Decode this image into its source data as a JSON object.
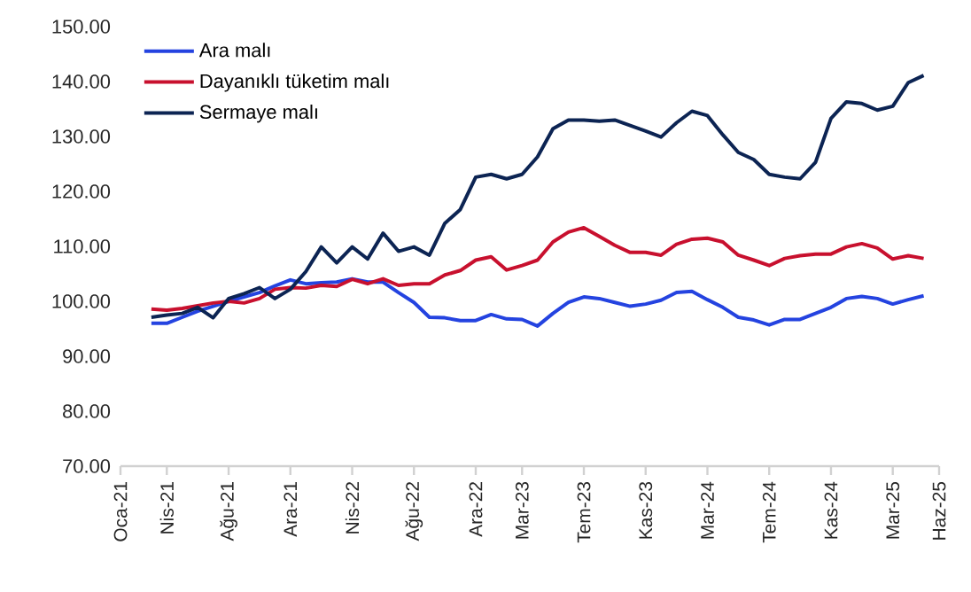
{
  "chart_data": {
    "type": "line",
    "legend": "top left",
    "grid": false,
    "marker": "none",
    "line_style": "solid",
    "x": [
      "2021-03",
      "2021-04",
      "2021-05",
      "2021-06",
      "2021-07",
      "2021-08",
      "2021-09",
      "2021-10",
      "2021-11",
      "2021-12",
      "2022-01",
      "2022-02",
      "2022-03",
      "2022-04",
      "2022-05",
      "2022-06",
      "2022-07",
      "2022-08",
      "2022-09",
      "2022-10",
      "2022-11",
      "2022-12",
      "2023-01",
      "2023-02",
      "2023-03",
      "2023-04",
      "2023-05",
      "2023-06",
      "2023-07",
      "2023-08",
      "2023-09",
      "2023-10",
      "2023-11",
      "2023-12",
      "2024-01",
      "2024-02",
      "2024-03",
      "2024-04",
      "2024-05",
      "2024-06",
      "2024-07",
      "2024-08",
      "2024-09",
      "2024-10",
      "2024-11",
      "2024-12",
      "2025-01",
      "2025-02",
      "2025-03",
      "2025-04",
      "2025-05"
    ],
    "xlim": [
      "2021-01",
      "2025-06"
    ],
    "xticks": [
      {
        "value": "2021-01",
        "label": "Oca-21"
      },
      {
        "value": "2021-04",
        "label": "Nis-21"
      },
      {
        "value": "2021-08",
        "label": "Ağu-21"
      },
      {
        "value": "2021-12",
        "label": "Ara-21"
      },
      {
        "value": "2022-04",
        "label": "Nis-22"
      },
      {
        "value": "2022-08",
        "label": "Ağu-22"
      },
      {
        "value": "2022-12",
        "label": "Ara-22"
      },
      {
        "value": "2023-03",
        "label": "Mar-23"
      },
      {
        "value": "2023-07",
        "label": "Tem-23"
      },
      {
        "value": "2023-11",
        "label": "Kas-23"
      },
      {
        "value": "2024-03",
        "label": "Mar-24"
      },
      {
        "value": "2024-07",
        "label": "Tem-24"
      },
      {
        "value": "2024-11",
        "label": "Kas-24"
      },
      {
        "value": "2025-03",
        "label": "Mar-25"
      },
      {
        "value": "2025-06",
        "label": "Haz-25"
      }
    ],
    "ylim": [
      70,
      150
    ],
    "yticks": [
      {
        "value": 70,
        "label": "70.00"
      },
      {
        "value": 80,
        "label": "80.00"
      },
      {
        "value": 90,
        "label": "90.00"
      },
      {
        "value": 100,
        "label": "100.00"
      },
      {
        "value": 110,
        "label": "110.00"
      },
      {
        "value": 120,
        "label": "120.00"
      },
      {
        "value": 130,
        "label": "130.00"
      },
      {
        "value": 140,
        "label": "140.00"
      },
      {
        "value": 150,
        "label": "150.00"
      }
    ],
    "series": [
      {
        "name": "Ara malı",
        "color": "#2443e0",
        "values": [
          96.0,
          96.0,
          97.1,
          98.2,
          99.1,
          100.0,
          100.8,
          101.6,
          102.8,
          103.9,
          103.2,
          103.4,
          103.5,
          104.1,
          103.5,
          103.5,
          101.6,
          99.8,
          97.1,
          97.0,
          96.5,
          96.5,
          97.6,
          96.8,
          96.7,
          95.5,
          97.8,
          99.8,
          100.8,
          100.5,
          99.8,
          99.1,
          99.5,
          100.2,
          101.6,
          101.8,
          100.3,
          98.9,
          97.1,
          96.6,
          95.7,
          96.7,
          96.7,
          97.8,
          98.9,
          100.5,
          100.9,
          100.5,
          99.5,
          100.3,
          101.0
        ]
      },
      {
        "name": "Dayanıklı tüketim malı",
        "color": "#c8102e",
        "values": [
          98.6,
          98.4,
          98.7,
          99.2,
          99.7,
          100.0,
          99.7,
          100.5,
          102.2,
          102.5,
          102.4,
          102.9,
          102.7,
          104.0,
          103.2,
          104.1,
          102.9,
          103.2,
          103.2,
          104.8,
          105.6,
          107.5,
          108.1,
          105.7,
          106.5,
          107.5,
          110.8,
          112.6,
          113.4,
          111.8,
          110.2,
          108.9,
          108.9,
          108.4,
          110.4,
          111.3,
          111.5,
          110.8,
          108.4,
          107.5,
          106.5,
          107.8,
          108.3,
          108.6,
          108.6,
          109.9,
          110.5,
          109.7,
          107.7,
          108.3,
          107.8
        ]
      },
      {
        "name": "Sermaye malı",
        "color": "#0c2453",
        "values": [
          97.1,
          97.5,
          97.8,
          98.9,
          97.0,
          100.5,
          101.4,
          102.5,
          100.5,
          102.2,
          105.4,
          109.9,
          107.0,
          109.9,
          107.7,
          112.4,
          109.1,
          109.9,
          108.4,
          114.2,
          116.7,
          122.6,
          123.1,
          122.3,
          123.1,
          126.3,
          131.4,
          133.0,
          133.0,
          132.8,
          133.0,
          132.0,
          131.0,
          129.9,
          132.5,
          134.6,
          133.8,
          130.3,
          127.1,
          125.8,
          123.1,
          122.6,
          122.3,
          125.3,
          133.3,
          136.3,
          136.0,
          134.8,
          135.5,
          139.8,
          141.1
        ]
      }
    ]
  }
}
